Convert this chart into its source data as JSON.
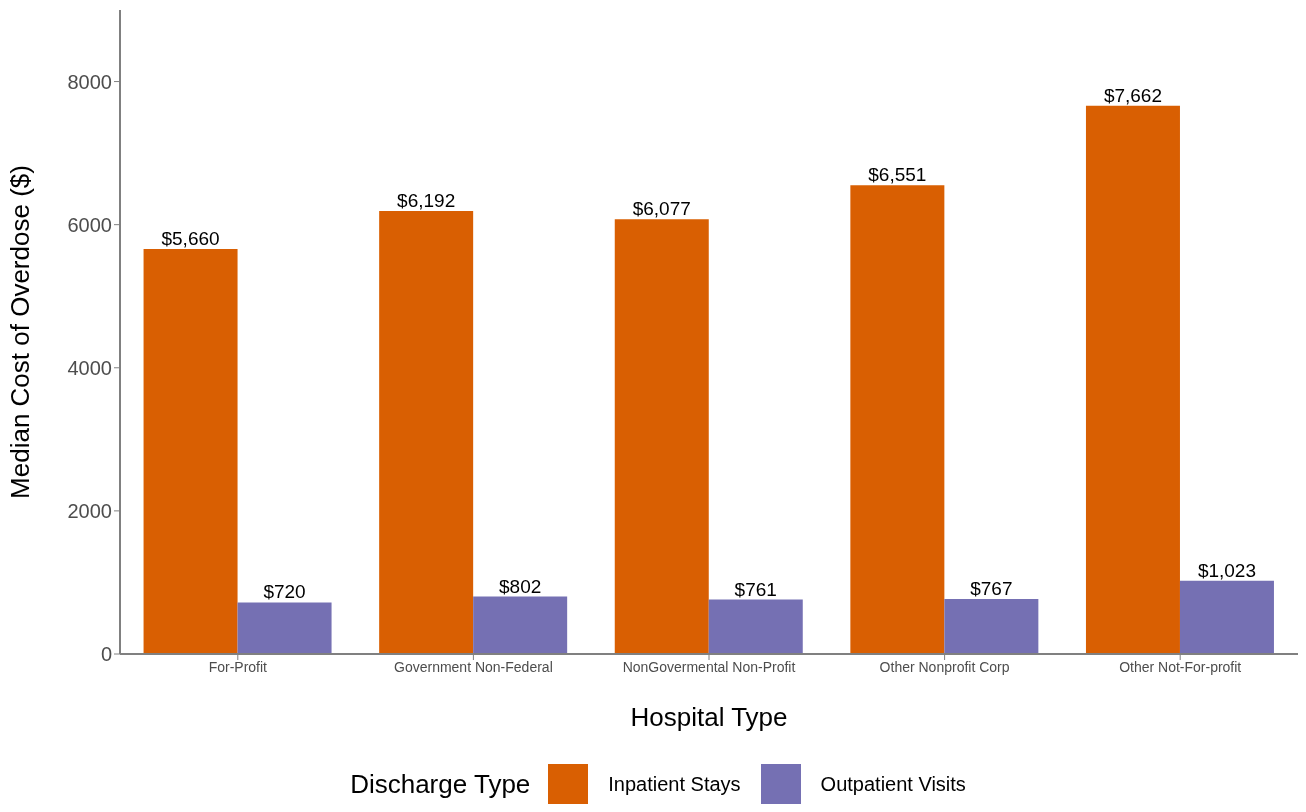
{
  "chart_data": {
    "type": "bar",
    "xlabel": "Hospital Type",
    "ylabel": "Median Cost of Overdose ($)",
    "legend_title": "Discharge Type",
    "categories": [
      "For-Profit",
      "Government Non-Federal",
      "NonGovermental Non-Profit",
      "Other Nonprofit Corp",
      "Other Not-For-profit"
    ],
    "series": [
      {
        "name": "Inpatient Stays",
        "color": "#d95f02",
        "values": [
          5660,
          6192,
          6077,
          6551,
          7662
        ],
        "value_labels": [
          "$5,660",
          "$6,192",
          "$6,077",
          "$6,551",
          "$7,662"
        ]
      },
      {
        "name": "Outpatient Visits",
        "color": "#7570b3",
        "values": [
          720,
          802,
          761,
          767,
          1023
        ],
        "value_labels": [
          "$720",
          "$802",
          "$761",
          "$767",
          "$1,023"
        ]
      }
    ],
    "ylim": [
      0,
      9000
    ],
    "yticks": [
      0,
      2000,
      4000,
      6000,
      8000
    ],
    "grid": false,
    "legend": "bottom"
  }
}
